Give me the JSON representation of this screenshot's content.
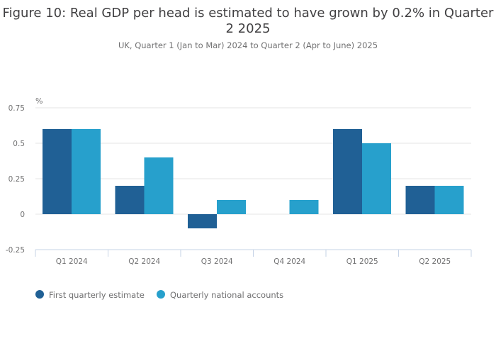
{
  "chart_data": {
    "type": "bar",
    "title": "Figure 10: Real GDP per head is estimated to have grown by 0.2% in Quarter 2 2025",
    "subtitle": "UK, Quarter 1 (Jan to Mar) 2024 to Quarter 2 (Apr to June) 2025",
    "ylabel": "%",
    "xlabel": "",
    "ylim": [
      -0.25,
      0.75
    ],
    "yticks": [
      -0.25,
      0,
      0.25,
      0.5,
      0.75
    ],
    "ytick_labels": [
      "-0.25",
      "0",
      "0.25",
      "0.5",
      "0.75"
    ],
    "grid": true,
    "legend_position": "bottom-left",
    "categories": [
      "Q1 2024",
      "Q2 2024",
      "Q3 2024",
      "Q4 2024",
      "Q1 2025",
      "Q2 2025"
    ],
    "series": [
      {
        "name": "First quarterly estimate",
        "color": "#206095",
        "values": [
          0.6,
          0.2,
          -0.1,
          0,
          0.6,
          0.2
        ]
      },
      {
        "name": "Quarterly national accounts",
        "color": "#27a0cc",
        "values": [
          0.6,
          0.4,
          0.1,
          0.1,
          0.5,
          0.2
        ]
      }
    ]
  }
}
